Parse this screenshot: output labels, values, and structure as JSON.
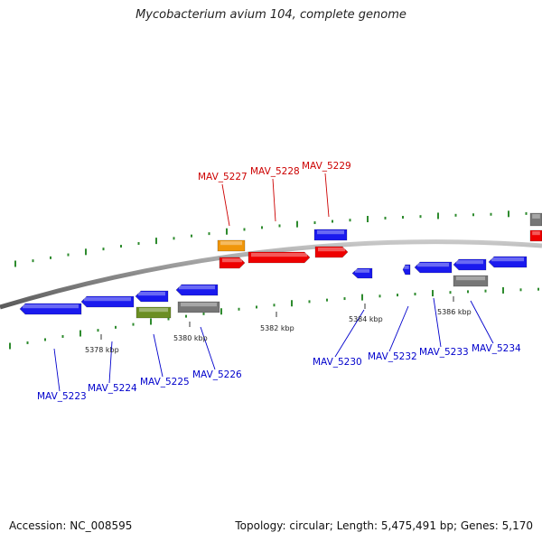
{
  "title": "Mycobacterium avium 104, complete genome",
  "footer": {
    "accession": "Accession: NC_008595",
    "summary": "Topology: circular; Length: 5,475,491 bp; Genes: 5,170"
  },
  "colors": {
    "backbone": "#8a8a8a",
    "dots": "#2e8b2e",
    "forward_red": "#ee0000",
    "blue": "#1a1aee",
    "orange": "#f0960a",
    "gray": "#777777",
    "olive": "#6b8e23",
    "label_red": "#cc0000",
    "label_blue": "#0000cc"
  },
  "positions": [
    {
      "label": "5378 kbp"
    },
    {
      "label": "5380 kbp"
    },
    {
      "label": "5382 kbp"
    },
    {
      "label": "5384 kbp"
    },
    {
      "label": "5386 kbp"
    }
  ],
  "genes": [
    {
      "name": "MAV_5223",
      "strand": "reverse",
      "color": "blue"
    },
    {
      "name": "MAV_5224",
      "strand": "reverse",
      "color": "blue"
    },
    {
      "name": "MAV_5225",
      "strand": "reverse",
      "color": "blue"
    },
    {
      "name": "MAV_5226",
      "strand": "reverse",
      "color": "blue"
    },
    {
      "name": "MAV_5227",
      "strand": "forward",
      "color": "forward_red"
    },
    {
      "name": "MAV_5228",
      "strand": "forward",
      "color": "forward_red"
    },
    {
      "name": "MAV_5229",
      "strand": "forward",
      "color": "forward_red"
    },
    {
      "name": "MAV_5230",
      "strand": "reverse",
      "color": "blue"
    },
    {
      "name": "MAV_5232",
      "strand": "reverse",
      "color": "blue"
    },
    {
      "name": "MAV_5233",
      "strand": "reverse",
      "color": "blue"
    },
    {
      "name": "MAV_5234",
      "strand": "reverse",
      "color": "blue"
    }
  ]
}
